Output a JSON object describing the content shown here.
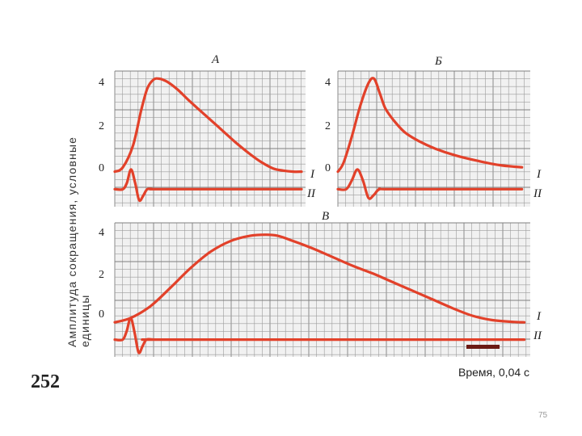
{
  "page_number": "252",
  "slide_number": "75",
  "chart_data": {
    "type": "line",
    "ylabel_lines": [
      "Амплитуда сокращения, условные",
      "единицы"
    ],
    "xlabel": "Время, 0,04 с",
    "series_names": [
      "I",
      "II"
    ],
    "colors": {
      "curve": "#e2412a",
      "scale_bar": "#6b1a14"
    },
    "yticks": [
      0,
      2,
      4
    ],
    "ylim": [
      -1.6,
      4.6
    ],
    "panels": [
      {
        "title": "А",
        "xlim": [
          0,
          9.4
        ],
        "series": [
          {
            "name": "I",
            "x": [
              0,
              0.4,
              0.9,
              1.3,
              1.6,
              1.9,
              2.2,
              2.6,
              3.1,
              3.6,
              4.2,
              4.8,
              5.4,
              6.0,
              6.6,
              7.2,
              7.8,
              8.3,
              8.8,
              9.2
            ],
            "y": [
              0,
              0.2,
              1.2,
              2.8,
              3.8,
              4.2,
              4.25,
              4.1,
              3.75,
              3.3,
              2.8,
              2.3,
              1.8,
              1.3,
              0.85,
              0.45,
              0.15,
              0.05,
              0,
              0
            ]
          },
          {
            "name": "II",
            "x": [
              0,
              0.4,
              0.6,
              0.8,
              1.0,
              1.2,
              1.4,
              1.6,
              1.9,
              2.4,
              9.2
            ],
            "y": [
              -0.8,
              -0.8,
              -0.5,
              0.1,
              -0.5,
              -1.3,
              -1.1,
              -0.8,
              -0.8,
              -0.8,
              -0.8
            ]
          }
        ]
      },
      {
        "title": "Б",
        "xlim": [
          0,
          6.9
        ],
        "series": [
          {
            "name": "I",
            "x": [
              0,
              0.2,
              0.5,
              0.8,
              1.1,
              1.3,
              1.5,
              1.7,
              2.0,
              2.4,
              2.9,
              3.5,
              4.2,
              5.0,
              5.8,
              6.6
            ],
            "y": [
              0,
              0.4,
              1.6,
              3.0,
              4.05,
              4.25,
              3.6,
              2.9,
              2.35,
              1.8,
              1.4,
              1.05,
              0.75,
              0.5,
              0.3,
              0.2
            ]
          },
          {
            "name": "II",
            "x": [
              0,
              0.3,
              0.5,
              0.7,
              0.9,
              1.1,
              1.3,
              1.5,
              2.0,
              6.6
            ],
            "y": [
              -0.8,
              -0.8,
              -0.4,
              0.1,
              -0.4,
              -1.2,
              -1.05,
              -0.8,
              -0.8,
              -0.8
            ]
          }
        ]
      },
      {
        "title": "В",
        "xlim": [
          0,
          20.9
        ],
        "series": [
          {
            "name": "I",
            "x": [
              0,
              0.8,
              1.8,
              2.8,
              3.8,
              4.8,
              5.8,
              6.8,
              7.6,
              8.2,
              9.0,
              10.0,
              11.0,
              12.0,
              13.0,
              14.0,
              15.0,
              16.0,
              17.0,
              18.0,
              19.0,
              20.0,
              20.6
            ],
            "y": [
              0,
              0.2,
              0.75,
              1.6,
              2.5,
              3.25,
              3.75,
              4.0,
              4.05,
              4.0,
              3.75,
              3.4,
              3.0,
              2.6,
              2.25,
              1.85,
              1.45,
              1.05,
              0.65,
              0.3,
              0.1,
              0.02,
              0
            ]
          },
          {
            "name": "II",
            "x": [
              0,
              0.4,
              0.6,
              0.8,
              1.0,
              1.2,
              1.4,
              1.6,
              2.0,
              3.0,
              20.6
            ],
            "y": [
              -0.8,
              -0.8,
              -0.4,
              0.2,
              -0.5,
              -1.4,
              -1.1,
              -0.8,
              -0.8,
              -0.8,
              -0.8
            ]
          }
        ]
      }
    ]
  }
}
